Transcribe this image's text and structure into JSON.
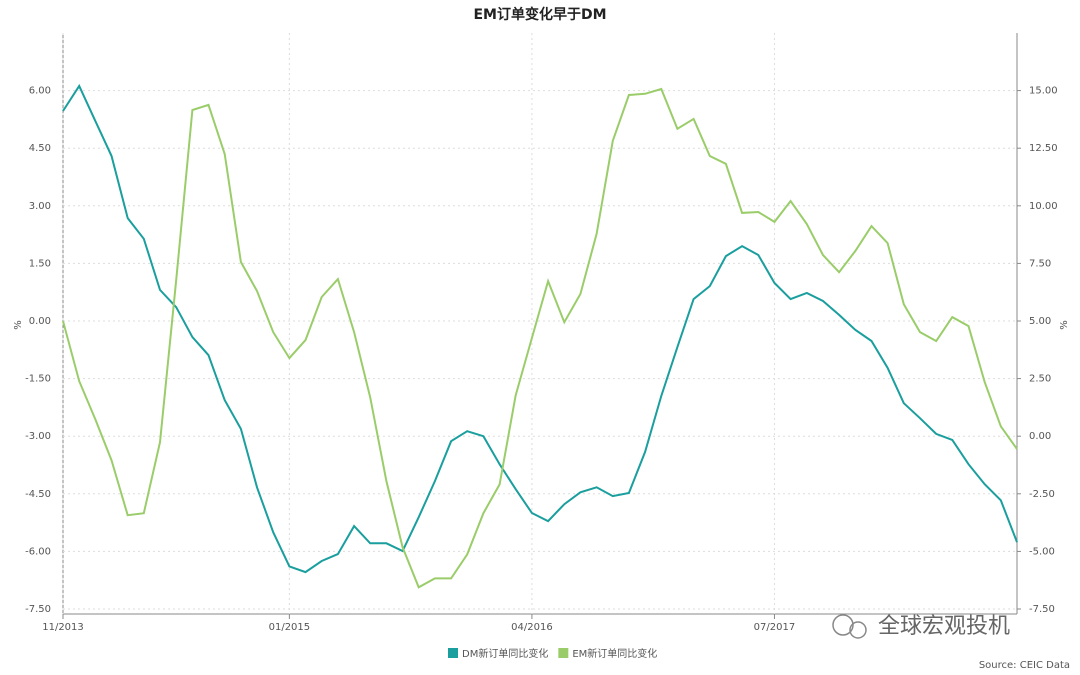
{
  "chart_data": {
    "type": "line",
    "title": "EM订单变化早于DM",
    "y_label": "%",
    "y2_label": "%",
    "source": "Source: CEIC Data",
    "watermark": "全球宏观投机",
    "grid": true,
    "x": [
      "11/2013",
      "12/2013",
      "01/2014",
      "02/2014",
      "03/2014",
      "04/2014",
      "05/2014",
      "06/2014",
      "07/2014",
      "08/2014",
      "09/2014",
      "10/2014",
      "11/2014",
      "12/2014",
      "01/2015",
      "02/2015",
      "03/2015",
      "04/2015",
      "05/2015",
      "06/2015",
      "07/2015",
      "08/2015",
      "09/2015",
      "10/2015",
      "11/2015",
      "12/2015",
      "01/2016",
      "02/2016",
      "03/2016",
      "04/2016",
      "05/2016",
      "06/2016",
      "07/2016",
      "08/2016",
      "09/2016",
      "10/2016",
      "11/2016",
      "12/2016",
      "01/2017",
      "02/2017",
      "03/2017",
      "04/2017",
      "05/2017",
      "06/2017",
      "07/2017",
      "08/2017",
      "09/2017",
      "10/2017",
      "11/2017",
      "12/2017",
      "01/2018",
      "02/2018",
      "03/2018",
      "04/2018",
      "05/2018",
      "06/2018",
      "07/2018",
      "08/2018",
      "09/2018",
      "10/2018"
    ],
    "xticks": [
      "11/2013",
      "01/2015",
      "04/2016",
      "07/2017"
    ],
    "ylim": [
      -7.5,
      7.5
    ],
    "yticks": [
      {
        "value": -7.5,
        "label": "-7.50"
      },
      {
        "value": -6,
        "label": "-6.00"
      },
      {
        "value": -4.5,
        "label": "-4.50"
      },
      {
        "value": -3,
        "label": "-3.00"
      },
      {
        "value": -1.5,
        "label": "-1.50"
      },
      {
        "value": 0,
        "label": "0.00"
      },
      {
        "value": 1.5,
        "label": "1.50"
      },
      {
        "value": 3,
        "label": "3.00"
      },
      {
        "value": 4.5,
        "label": "4.50"
      },
      {
        "value": 6,
        "label": "6.00"
      }
    ],
    "y2lim": [
      -7.5,
      17.5
    ],
    "y2ticks": [
      {
        "value": -7.5,
        "label": "-7.50"
      },
      {
        "value": -5,
        "label": "-5.00"
      },
      {
        "value": -2.5,
        "label": "-2.50"
      },
      {
        "value": 0,
        "label": "0.00"
      },
      {
        "value": 2.5,
        "label": "2.50"
      },
      {
        "value": 5,
        "label": "5.00"
      },
      {
        "value": 7.5,
        "label": "7.50"
      },
      {
        "value": 10,
        "label": "10.00"
      },
      {
        "value": 12.5,
        "label": "12.50"
      },
      {
        "value": 15,
        "label": "15.00"
      }
    ],
    "series": [
      {
        "name": "DM新订单同比变化",
        "color": "#1a9e9e",
        "values": [
          5.47,
          6.12,
          5.21,
          4.3,
          2.68,
          2.14,
          0.81,
          0.36,
          -0.42,
          -0.89,
          -2.06,
          -2.81,
          -4.33,
          -5.5,
          -6.39,
          -6.54,
          -6.25,
          -6.07,
          -5.34,
          -5.79,
          -5.79,
          -5.99,
          -5.11,
          -4.17,
          -3.13,
          -2.87,
          -3.0,
          -3.73,
          -4.38,
          -5.0,
          -5.21,
          -4.77,
          -4.46,
          -4.33,
          -4.56,
          -4.48,
          -3.41,
          -1.95,
          -0.68,
          0.57,
          0.91,
          1.69,
          1.95,
          1.72,
          0.99,
          0.57,
          0.73,
          0.52,
          0.16,
          -0.23,
          -0.52,
          -1.22,
          -2.14,
          -2.53,
          -2.94,
          -3.1,
          -3.73,
          -4.25,
          -4.67,
          -5.76
        ]
      },
      {
        "name": "EM新订单同比变化",
        "color": "#9acd6a",
        "axis": "y2",
        "values": [
          5.0,
          2.39,
          0.74,
          -1.04,
          -3.43,
          -3.34,
          -0.26,
          6.78,
          14.16,
          14.38,
          12.25,
          7.56,
          6.3,
          4.52,
          3.39,
          4.17,
          6.04,
          6.82,
          4.52,
          1.69,
          -1.95,
          -4.82,
          -6.56,
          -6.17,
          -6.17,
          -5.13,
          -3.34,
          -2.09,
          1.78,
          4.26,
          6.73,
          4.95,
          6.17,
          8.78,
          12.82,
          14.81,
          14.86,
          15.07,
          13.34,
          13.77,
          12.16,
          11.82,
          9.69,
          9.73,
          9.3,
          10.21,
          9.21,
          7.86,
          7.12,
          8.04,
          9.12,
          8.38,
          5.73,
          4.52,
          4.13,
          5.17,
          4.78,
          2.35,
          0.43,
          -0.56
        ]
      }
    ]
  }
}
